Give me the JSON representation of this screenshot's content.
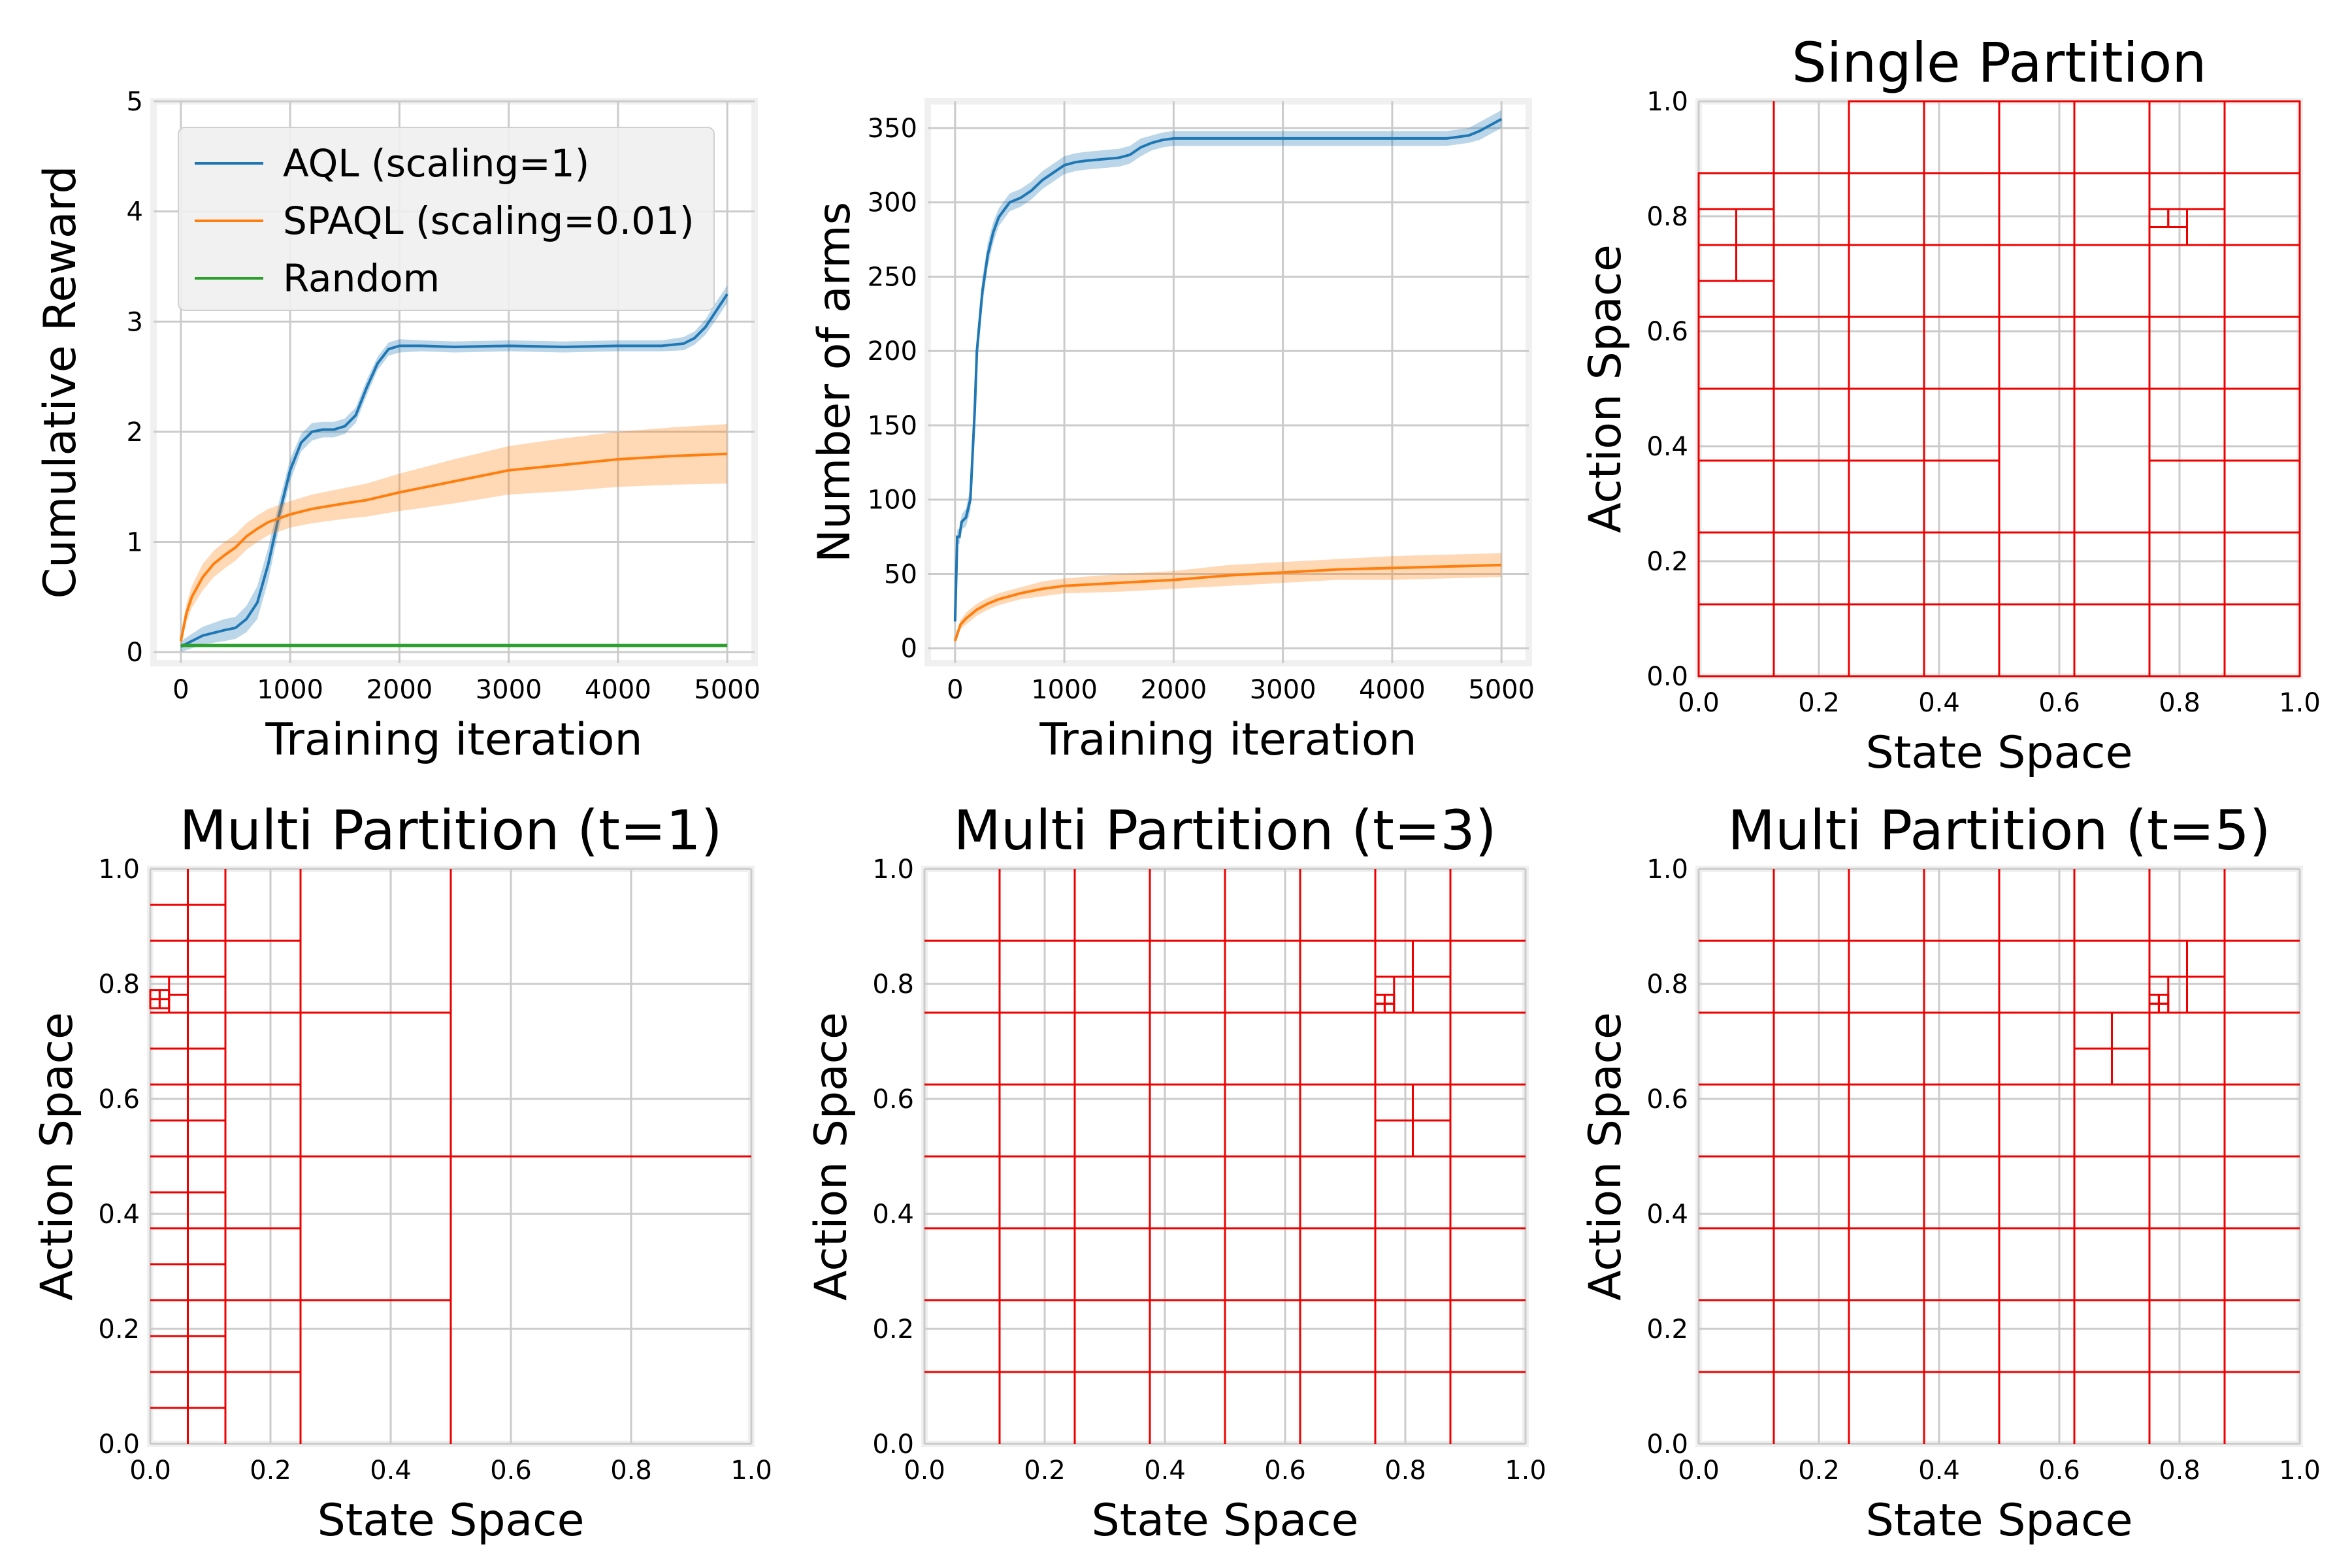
{
  "chart_data": [
    {
      "id": "reward",
      "type": "line",
      "title": "",
      "xlabel": "Training iteration",
      "ylabel": "Cumulative Reward",
      "xlim": [
        -250,
        5250
      ],
      "ylim": [
        -0.1,
        5.0
      ],
      "xticks": [
        0,
        1000,
        2000,
        3000,
        4000,
        5000
      ],
      "yticks": [
        0,
        1,
        2,
        3,
        4,
        5
      ],
      "grid": true,
      "legend": "top-left",
      "series": [
        {
          "name": "AQL (scaling=1)",
          "color": "#1f77b4",
          "x": [
            0,
            200,
            400,
            500,
            600,
            700,
            800,
            900,
            1000,
            1100,
            1200,
            1300,
            1400,
            1500,
            1600,
            1700,
            1800,
            1900,
            2000,
            2200,
            2500,
            3000,
            3500,
            4000,
            4400,
            4600,
            4700,
            4800,
            4900,
            5000
          ],
          "y": [
            0.05,
            0.15,
            0.2,
            0.22,
            0.3,
            0.45,
            0.8,
            1.25,
            1.65,
            1.9,
            2.0,
            2.02,
            2.02,
            2.05,
            2.15,
            2.4,
            2.62,
            2.75,
            2.78,
            2.78,
            2.77,
            2.78,
            2.77,
            2.78,
            2.78,
            2.8,
            2.85,
            2.95,
            3.1,
            3.25
          ],
          "band": [
            0.05,
            0.08,
            0.1,
            0.1,
            0.12,
            0.15,
            0.15,
            0.12,
            0.1,
            0.08,
            0.08,
            0.07,
            0.07,
            0.07,
            0.07,
            0.07,
            0.06,
            0.06,
            0.06,
            0.05,
            0.05,
            0.05,
            0.05,
            0.05,
            0.05,
            0.06,
            0.06,
            0.07,
            0.08,
            0.08
          ]
        },
        {
          "name": "SPAQL (scaling=0.01)",
          "color": "#ff7f0e",
          "x": [
            0,
            50,
            100,
            200,
            300,
            400,
            500,
            600,
            700,
            800,
            1000,
            1200,
            1500,
            1700,
            2000,
            2500,
            3000,
            3500,
            4000,
            4500,
            5000
          ],
          "y": [
            0.1,
            0.35,
            0.5,
            0.68,
            0.8,
            0.88,
            0.95,
            1.05,
            1.12,
            1.18,
            1.25,
            1.3,
            1.35,
            1.38,
            1.45,
            1.55,
            1.65,
            1.7,
            1.75,
            1.78,
            1.8
          ],
          "band": [
            0.05,
            0.08,
            0.1,
            0.12,
            0.12,
            0.12,
            0.12,
            0.12,
            0.12,
            0.12,
            0.12,
            0.13,
            0.14,
            0.15,
            0.17,
            0.2,
            0.22,
            0.24,
            0.25,
            0.26,
            0.27
          ]
        },
        {
          "name": "Random",
          "color": "#2ca02c",
          "x": [
            0,
            5000
          ],
          "y": [
            0.06,
            0.06
          ],
          "band": [
            0.02,
            0.02
          ]
        }
      ]
    },
    {
      "id": "arms",
      "type": "line",
      "title": "",
      "xlabel": "Training iteration",
      "ylabel": "Number of arms",
      "xlim": [
        -250,
        5250
      ],
      "ylim": [
        -10,
        368
      ],
      "xticks": [
        0,
        1000,
        2000,
        3000,
        4000,
        5000
      ],
      "yticks": [
        0,
        50,
        100,
        150,
        200,
        250,
        300,
        350
      ],
      "grid": true,
      "series": [
        {
          "name": "AQL",
          "color": "#1f77b4",
          "x": [
            0,
            20,
            40,
            60,
            100,
            140,
            180,
            200,
            250,
            300,
            350,
            400,
            450,
            500,
            600,
            700,
            800,
            900,
            1000,
            1100,
            1200,
            1500,
            1600,
            1700,
            1800,
            1900,
            2000,
            2500,
            3000,
            3500,
            4000,
            4500,
            4600,
            4700,
            4800,
            4900,
            5000
          ],
          "y": [
            18,
            75,
            75,
            85,
            88,
            100,
            160,
            200,
            240,
            265,
            280,
            290,
            295,
            300,
            303,
            308,
            315,
            320,
            325,
            327,
            328,
            330,
            332,
            337,
            340,
            342,
            343,
            343,
            343,
            343,
            343,
            343,
            344,
            345,
            348,
            352,
            356
          ],
          "band": [
            3,
            5,
            5,
            5,
            6,
            8,
            10,
            10,
            9,
            8,
            7,
            6,
            6,
            6,
            6,
            6,
            6,
            6,
            6,
            6,
            6,
            6,
            6,
            6,
            5,
            5,
            5,
            5,
            5,
            5,
            5,
            5,
            5,
            5,
            6,
            6,
            6
          ]
        },
        {
          "name": "SPAQL",
          "color": "#ff7f0e",
          "x": [
            0,
            50,
            100,
            200,
            300,
            400,
            500,
            600,
            800,
            1000,
            1500,
            2000,
            2500,
            3000,
            3500,
            4000,
            4500,
            5000
          ],
          "y": [
            5,
            16,
            20,
            26,
            30,
            33,
            35,
            37,
            40,
            42,
            44,
            46,
            49,
            51,
            53,
            54,
            55,
            56
          ],
          "band": [
            2,
            3,
            4,
            4,
            4,
            4,
            4,
            4,
            5,
            5,
            6,
            6,
            7,
            7,
            7,
            8,
            8,
            8
          ]
        }
      ]
    },
    {
      "id": "single",
      "type": "partition",
      "title": "Single Partition",
      "xlabel": "State Space",
      "ylabel": "Action Space",
      "xlim": [
        0,
        1
      ],
      "ylim": [
        0,
        1
      ],
      "ticks": [
        "0.0",
        "0.2",
        "0.4",
        "0.6",
        "0.8",
        "1.0"
      ],
      "color": "#ee0000",
      "boxes": [
        [
          0,
          0.5,
          0,
          0.5
        ],
        [
          0.5,
          1,
          0,
          0.5
        ],
        [
          0.5,
          1,
          0.5,
          1
        ],
        [
          0,
          0.25,
          0.5,
          0.75
        ],
        [
          0.25,
          0.5,
          0.5,
          0.75
        ],
        [
          0.25,
          0.5,
          0.75,
          1
        ],
        [
          0,
          0.125,
          0.625,
          0.75
        ],
        [
          0,
          0.125,
          0.75,
          0.875
        ],
        [
          0,
          0.0625,
          0.6875,
          0.75
        ],
        [
          0.0625,
          0.125,
          0.6875,
          0.75
        ],
        [
          0,
          0.0625,
          0.75,
          0.8125
        ],
        [
          0.0625,
          0.125,
          0.75,
          0.8125
        ],
        [
          0.75,
          0.8125,
          0.75,
          0.8125
        ],
        [
          0.75,
          0.78125,
          0.78125,
          0.8125
        ],
        [
          0.78125,
          0.8125,
          0.78125,
          0.8125
        ]
      ],
      "vlines": [
        [
          0.125,
          0,
          1
        ],
        [
          0.25,
          0,
          1
        ],
        [
          0.375,
          0,
          1
        ],
        [
          0.5,
          0,
          1
        ],
        [
          0.625,
          0,
          1
        ],
        [
          0.75,
          0,
          1
        ],
        [
          0.875,
          0,
          1
        ]
      ],
      "hlines": [
        [
          0.125,
          0,
          1
        ],
        [
          0.25,
          0,
          1
        ],
        [
          0.5,
          0,
          1
        ],
        [
          0.625,
          0,
          1
        ],
        [
          0.75,
          0,
          1
        ],
        [
          0.875,
          0,
          1
        ],
        [
          0.375,
          0,
          0.5
        ],
        [
          0.375,
          0.75,
          1
        ],
        [
          0.8125,
          0.75,
          0.875
        ]
      ]
    },
    {
      "id": "multi1",
      "type": "partition",
      "title": "Multi Partition (t=1)",
      "xlabel": "State Space",
      "ylabel": "Action Space",
      "xlim": [
        0,
        1
      ],
      "ylim": [
        0,
        1
      ],
      "ticks": [
        "0.0",
        "0.2",
        "0.4",
        "0.6",
        "0.8",
        "1.0"
      ],
      "color": "#ee0000",
      "boxes": [
        [
          0.0,
          0.015625,
          0.7578,
          0.7734
        ],
        [
          0.015625,
          0.03125,
          0.7578,
          0.7734
        ],
        [
          0.0,
          0.015625,
          0.7734,
          0.7891
        ],
        [
          0.015625,
          0.03125,
          0.7734,
          0.7891
        ],
        [
          0.03125,
          0.0625,
          0.75,
          0.78125
        ],
        [
          0.03125,
          0.0625,
          0.78125,
          0.8125
        ]
      ],
      "vlines": [
        [
          0.5,
          0,
          1
        ],
        [
          0.25,
          0,
          1
        ],
        [
          0.125,
          0,
          1
        ],
        [
          0.0625,
          0,
          1
        ]
      ],
      "hlines": [
        [
          0.5,
          0,
          1
        ],
        [
          0.25,
          0,
          0.5
        ],
        [
          0.75,
          0,
          0.5
        ],
        [
          0.125,
          0,
          0.25
        ],
        [
          0.375,
          0,
          0.25
        ],
        [
          0.625,
          0,
          0.25
        ],
        [
          0.875,
          0,
          0.25
        ],
        [
          0.0625,
          0,
          0.125
        ],
        [
          0.1875,
          0,
          0.125
        ],
        [
          0.3125,
          0,
          0.125
        ],
        [
          0.4375,
          0,
          0.125
        ],
        [
          0.5625,
          0,
          0.125
        ],
        [
          0.6875,
          0,
          0.125
        ],
        [
          0.8125,
          0,
          0.125
        ],
        [
          0.9375,
          0,
          0.125
        ]
      ]
    },
    {
      "id": "multi3",
      "type": "partition",
      "title": "Multi Partition (t=3)",
      "xlabel": "State Space",
      "ylabel": "Action Space",
      "xlim": [
        0,
        1
      ],
      "ylim": [
        0,
        1
      ],
      "ticks": [
        "0.0",
        "0.2",
        "0.4",
        "0.6",
        "0.8",
        "1.0"
      ],
      "color": "#ee0000",
      "boxes": [
        [
          0.75,
          0.8125,
          0.75,
          0.8125
        ],
        [
          0.75,
          0.78125,
          0.75,
          0.78125
        ],
        [
          0.75,
          0.78125,
          0.78125,
          0.8125
        ],
        [
          0.75,
          0.765625,
          0.75,
          0.765625
        ],
        [
          0.765625,
          0.78125,
          0.75,
          0.765625
        ],
        [
          0.75,
          0.765625,
          0.765625,
          0.78125
        ],
        [
          0.765625,
          0.78125,
          0.765625,
          0.78125
        ]
      ],
      "vlines": [
        [
          0.125,
          0,
          1
        ],
        [
          0.25,
          0,
          1
        ],
        [
          0.375,
          0,
          1
        ],
        [
          0.5,
          0,
          1
        ],
        [
          0.625,
          0,
          1
        ],
        [
          0.75,
          0,
          1
        ],
        [
          0.875,
          0,
          1
        ],
        [
          0.8125,
          0.75,
          0.875
        ],
        [
          0.8125,
          0.5,
          0.625
        ]
      ],
      "hlines": [
        [
          0.125,
          0,
          1
        ],
        [
          0.25,
          0,
          1
        ],
        [
          0.375,
          0,
          1
        ],
        [
          0.5,
          0,
          1
        ],
        [
          0.625,
          0,
          1
        ],
        [
          0.75,
          0,
          1
        ],
        [
          0.875,
          0,
          1
        ],
        [
          0.8125,
          0.75,
          0.875
        ],
        [
          0.5625,
          0.75,
          0.875
        ]
      ]
    },
    {
      "id": "multi5",
      "type": "partition",
      "title": "Multi Partition (t=5)",
      "xlabel": "State Space",
      "ylabel": "Action Space",
      "xlim": [
        0,
        1
      ],
      "ylim": [
        0,
        1
      ],
      "ticks": [
        "0.0",
        "0.2",
        "0.4",
        "0.6",
        "0.8",
        "1.0"
      ],
      "color": "#ee0000",
      "boxes": [
        [
          0.75,
          0.8125,
          0.75,
          0.8125
        ],
        [
          0.75,
          0.78125,
          0.75,
          0.78125
        ],
        [
          0.75,
          0.78125,
          0.78125,
          0.8125
        ],
        [
          0.75,
          0.765625,
          0.75,
          0.765625
        ],
        [
          0.765625,
          0.78125,
          0.75,
          0.765625
        ],
        [
          0.75,
          0.765625,
          0.765625,
          0.78125
        ],
        [
          0.765625,
          0.78125,
          0.765625,
          0.78125
        ]
      ],
      "vlines": [
        [
          0.125,
          0,
          1
        ],
        [
          0.25,
          0,
          1
        ],
        [
          0.375,
          0,
          1
        ],
        [
          0.5,
          0,
          1
        ],
        [
          0.625,
          0,
          1
        ],
        [
          0.75,
          0,
          1
        ],
        [
          0.875,
          0,
          1
        ],
        [
          0.8125,
          0.75,
          0.875
        ],
        [
          0.6875,
          0.625,
          0.75
        ]
      ],
      "hlines": [
        [
          0.125,
          0,
          1
        ],
        [
          0.25,
          0,
          1
        ],
        [
          0.375,
          0,
          1
        ],
        [
          0.5,
          0,
          1
        ],
        [
          0.625,
          0,
          1
        ],
        [
          0.75,
          0,
          1
        ],
        [
          0.875,
          0,
          1
        ],
        [
          0.8125,
          0.75,
          0.875
        ],
        [
          0.6875,
          0.625,
          0.75
        ]
      ]
    }
  ]
}
